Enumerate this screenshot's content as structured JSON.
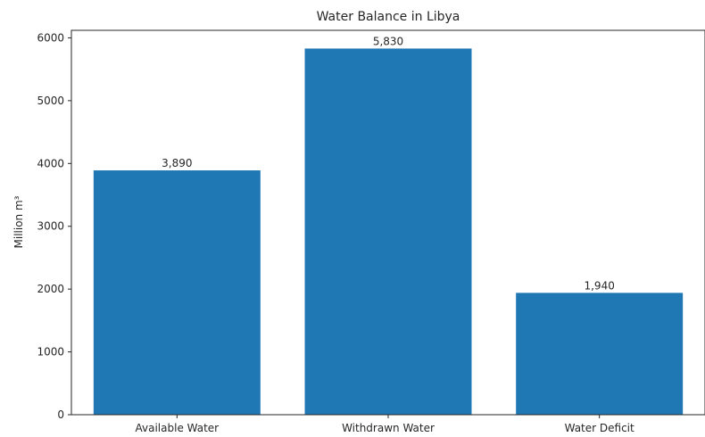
{
  "chart_data": {
    "type": "bar",
    "title": "Water Balance in Libya",
    "xlabel": "",
    "ylabel": "Million m³",
    "categories": [
      "Available Water",
      "Withdrawn Water",
      "Water Deficit"
    ],
    "values": [
      3890,
      5830,
      1940
    ],
    "data_labels": [
      "3,890",
      "5,830",
      "1,940"
    ],
    "ylim": [
      0,
      6120
    ],
    "yticks": [
      0,
      1000,
      2000,
      3000,
      4000,
      5000,
      6000
    ],
    "grid": false,
    "legend": "none",
    "bar_color": "#1f77b4"
  }
}
